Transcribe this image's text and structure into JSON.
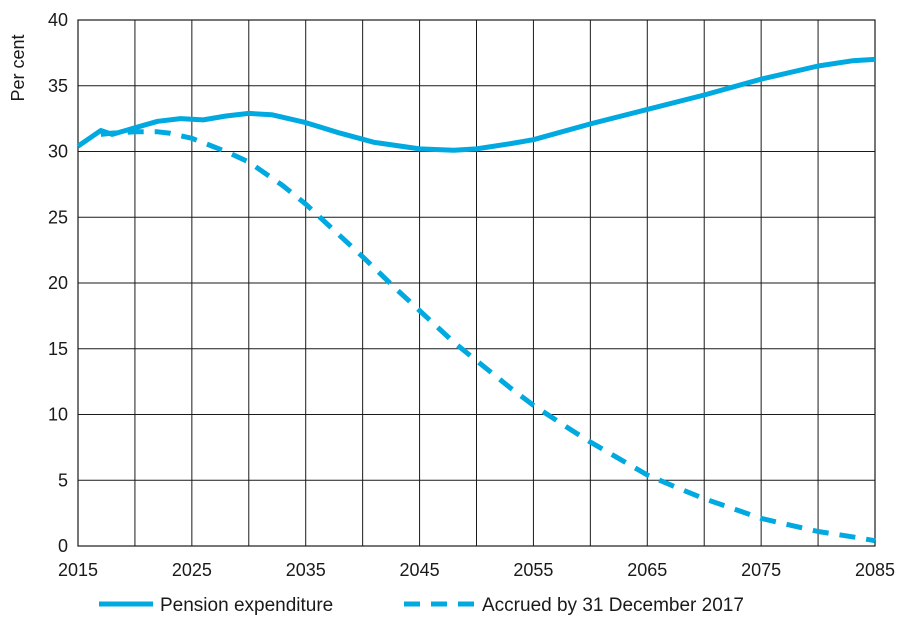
{
  "chart_data": {
    "type": "line",
    "title": "",
    "xlabel": "",
    "ylabel": "Per cent",
    "xlim": [
      2015,
      2085
    ],
    "ylim": [
      0,
      40
    ],
    "x_ticks": [
      "2015",
      "2025",
      "2035",
      "2045",
      "2055",
      "2065",
      "2075",
      "2085"
    ],
    "y_ticks": [
      "0",
      "5",
      "10",
      "15",
      "20",
      "25",
      "30",
      "35",
      "40"
    ],
    "grid": true,
    "legend_position": "bottom",
    "line_color": "#00a9e0",
    "series": [
      {
        "name": "Pension expenditure",
        "style": "solid",
        "x": [
          2015,
          2017,
          2018,
          2020,
          2022,
          2024,
          2026,
          2028,
          2030,
          2032,
          2035,
          2038,
          2041,
          2045,
          2048,
          2050,
          2053,
          2055,
          2060,
          2065,
          2070,
          2075,
          2080,
          2083,
          2085
        ],
        "y": [
          30.4,
          31.6,
          31.3,
          31.8,
          32.3,
          32.5,
          32.4,
          32.7,
          32.9,
          32.8,
          32.2,
          31.4,
          30.7,
          30.2,
          30.1,
          30.2,
          30.6,
          30.9,
          32.1,
          33.2,
          34.3,
          35.5,
          36.5,
          36.9,
          37.0
        ]
      },
      {
        "name": "Accrued by 31 December 2017",
        "style": "dashed",
        "x": [
          2017,
          2018,
          2020,
          2022,
          2023,
          2025,
          2028,
          2030,
          2033,
          2035,
          2038,
          2040,
          2043,
          2045,
          2048,
          2050,
          2053,
          2055,
          2058,
          2060,
          2063,
          2065,
          2068,
          2070,
          2073,
          2075,
          2078,
          2080,
          2083,
          2085
        ],
        "y": [
          31.3,
          31.4,
          31.5,
          31.5,
          31.4,
          31.0,
          30.0,
          29.2,
          27.4,
          26.0,
          23.6,
          22.0,
          19.5,
          17.9,
          15.5,
          14.1,
          12.0,
          10.7,
          9.0,
          7.9,
          6.4,
          5.4,
          4.3,
          3.6,
          2.7,
          2.1,
          1.5,
          1.1,
          0.7,
          0.4
        ]
      }
    ]
  }
}
